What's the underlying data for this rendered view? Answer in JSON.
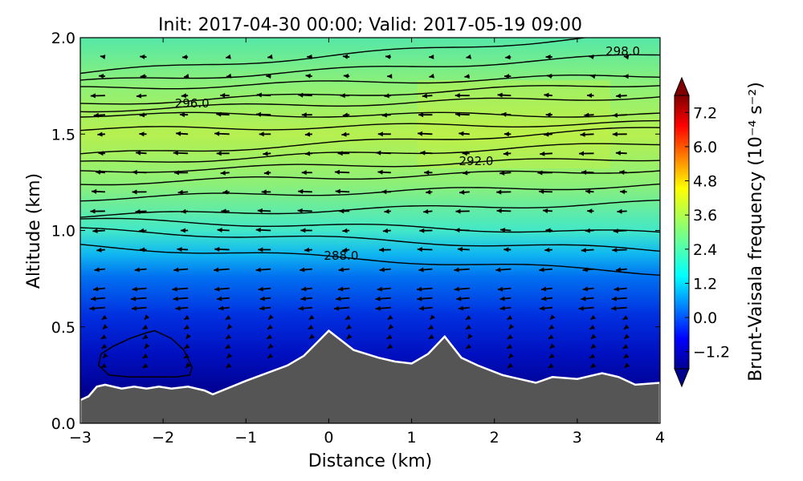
{
  "chart_data": {
    "type": "heatmap",
    "title": "Init: 2017-04-30 00:00; Valid: 2017-05-19 09:00",
    "xlabel": "Distance (km)",
    "ylabel": "Altitude (km)",
    "xlim": [
      -3,
      4
    ],
    "ylim": [
      0.0,
      2.0
    ],
    "xticks": [
      "−3",
      "−2",
      "−1",
      "0",
      "1",
      "2",
      "3",
      "4"
    ],
    "xtick_values": [
      -3,
      -2,
      -1,
      0,
      1,
      2,
      3,
      4
    ],
    "yticks": [
      "0.0",
      "0.5",
      "1.0",
      "1.5",
      "2.0"
    ],
    "ytick_values": [
      0.0,
      0.5,
      1.0,
      1.5,
      2.0
    ],
    "colorbar": {
      "label": "Brunt-Vaisala frequency (10⁻⁴ s⁻²)",
      "ticks": [
        "7.2",
        "6.0",
        "4.8",
        "3.6",
        "2.4",
        "1.2",
        "0.0",
        "−1.2"
      ],
      "tick_values": [
        7.2,
        6.0,
        4.8,
        3.6,
        2.4,
        1.2,
        0.0,
        -1.2
      ],
      "range": [
        -1.8,
        7.8
      ],
      "extend": "both",
      "colormap": "jet"
    },
    "terrain": {
      "color": "#555555",
      "outline_color": "#ffffff",
      "x": [
        -3.0,
        -2.9,
        -2.8,
        -2.7,
        -2.5,
        -2.35,
        -2.2,
        -2.05,
        -1.9,
        -1.7,
        -1.5,
        -1.4,
        -1.0,
        -0.5,
        -0.3,
        0.0,
        0.3,
        0.6,
        0.8,
        1.0,
        1.2,
        1.4,
        1.6,
        1.8,
        2.1,
        2.5,
        2.7,
        3.0,
        3.3,
        3.5,
        3.7,
        4.0
      ],
      "y": [
        0.12,
        0.14,
        0.19,
        0.2,
        0.18,
        0.19,
        0.18,
        0.19,
        0.18,
        0.19,
        0.17,
        0.15,
        0.22,
        0.3,
        0.35,
        0.48,
        0.38,
        0.34,
        0.32,
        0.31,
        0.36,
        0.45,
        0.34,
        0.3,
        0.25,
        0.21,
        0.24,
        0.23,
        0.26,
        0.24,
        0.2,
        0.21
      ]
    },
    "contour_labels": [
      {
        "text": "298.0",
        "x": 3.55,
        "y": 1.93
      },
      {
        "text": "296.0",
        "x": -1.65,
        "y": 1.66
      },
      {
        "text": "292.0",
        "x": 1.78,
        "y": 1.36
      },
      {
        "text": "288.0",
        "x": 0.15,
        "y": 0.87
      }
    ],
    "theta_contours": [
      {
        "y": 1.92,
        "slope": 0.03
      },
      {
        "y": 1.84,
        "slope": 0.02
      },
      {
        "y": 1.77,
        "slope": 0.01
      },
      {
        "y": 1.71,
        "slope": 0.015
      },
      {
        "y": 1.66,
        "slope": 0.01
      },
      {
        "y": 1.6,
        "slope": 0.0
      },
      {
        "y": 1.54,
        "slope": 0.005
      },
      {
        "y": 1.46,
        "slope": 0.02
      },
      {
        "y": 1.4,
        "slope": 0.015
      },
      {
        "y": 1.34,
        "slope": 0.01
      },
      {
        "y": 1.28,
        "slope": 0.01
      },
      {
        "y": 1.2,
        "slope": 0.01
      },
      {
        "y": 1.11,
        "slope": 0.01
      },
      {
        "y": 1.02,
        "slope": -0.01
      },
      {
        "y": 0.95,
        "slope": -0.015
      },
      {
        "y": 0.85,
        "slope": -0.02
      }
    ],
    "closed_contour": {
      "x": [
        -2.75,
        -2.6,
        -2.4,
        -2.2,
        -2.1,
        -1.9,
        -1.75,
        -1.65,
        -1.68,
        -1.85,
        -2.1,
        -2.4,
        -2.65,
        -2.78,
        -2.75
      ],
      "y": [
        0.36,
        0.4,
        0.44,
        0.47,
        0.48,
        0.44,
        0.38,
        0.29,
        0.25,
        0.24,
        0.24,
        0.24,
        0.25,
        0.3,
        0.36
      ]
    },
    "wind_vectors": {
      "description_units": "arrows point mostly toward negative distance",
      "columns_x": [
        -2.7,
        -2.2,
        -1.7,
        -1.2,
        -0.7,
        -0.2,
        0.25,
        0.75,
        1.25,
        1.7,
        2.2,
        2.7,
        3.2,
        3.6
      ],
      "rows_y": [
        1.9,
        1.8,
        1.7,
        1.6,
        1.5,
        1.4,
        1.3,
        1.2,
        1.1,
        1.0,
        0.9,
        0.8,
        0.7,
        0.65,
        0.6,
        0.55,
        0.5,
        0.45,
        0.4,
        0.35,
        0.3
      ]
    },
    "grid": false,
    "legend": "none"
  }
}
